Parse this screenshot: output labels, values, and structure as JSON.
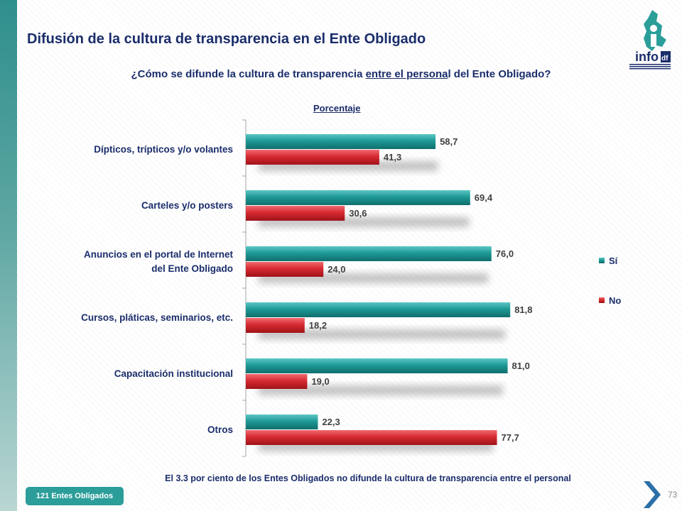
{
  "slide": {
    "title": "Difusión de la cultura de transparencia en el Ente Obligado",
    "question_before": "¿Cómo se difunde la cultura de transparencia ",
    "question_underlined": "entre el persona",
    "question_after": "l del Ente Obligado?",
    "unit_label": "Porcentaje",
    "footnote": "El 3.3  por ciento de los Entes Obligados no difunde la cultura de transparencia entre el personal",
    "badge": "121 Entes Obligados",
    "page_number": "73",
    "logo_text": "info",
    "logo_suffix": "df"
  },
  "colors": {
    "si": "#1f9a97",
    "no": "#d72a31",
    "text": "#1a2d6b",
    "axis": "#a6a6a6"
  },
  "chart_data": {
    "type": "bar",
    "orientation": "horizontal",
    "categories": [
      [
        "Dípticos, trípticos y/o volantes"
      ],
      [
        "Carteles y/o posters"
      ],
      [
        "Anuncios en el portal de Internet",
        "del Ente Obligado"
      ],
      [
        "Cursos, pláticas, seminarios, etc."
      ],
      [
        "Capacitación institucional"
      ],
      [
        "Otros"
      ]
    ],
    "series": [
      {
        "name": "Sí",
        "values": [
          "58,7",
          "69,4",
          "76,0",
          "81,8",
          "81,0",
          "22,3"
        ]
      },
      {
        "name": "No",
        "values": [
          "41,3",
          "30,6",
          "24,0",
          "18,2",
          "19,0",
          "77,7"
        ]
      }
    ],
    "xlim": [
      0,
      100
    ],
    "legend": "right",
    "grid": false
  }
}
